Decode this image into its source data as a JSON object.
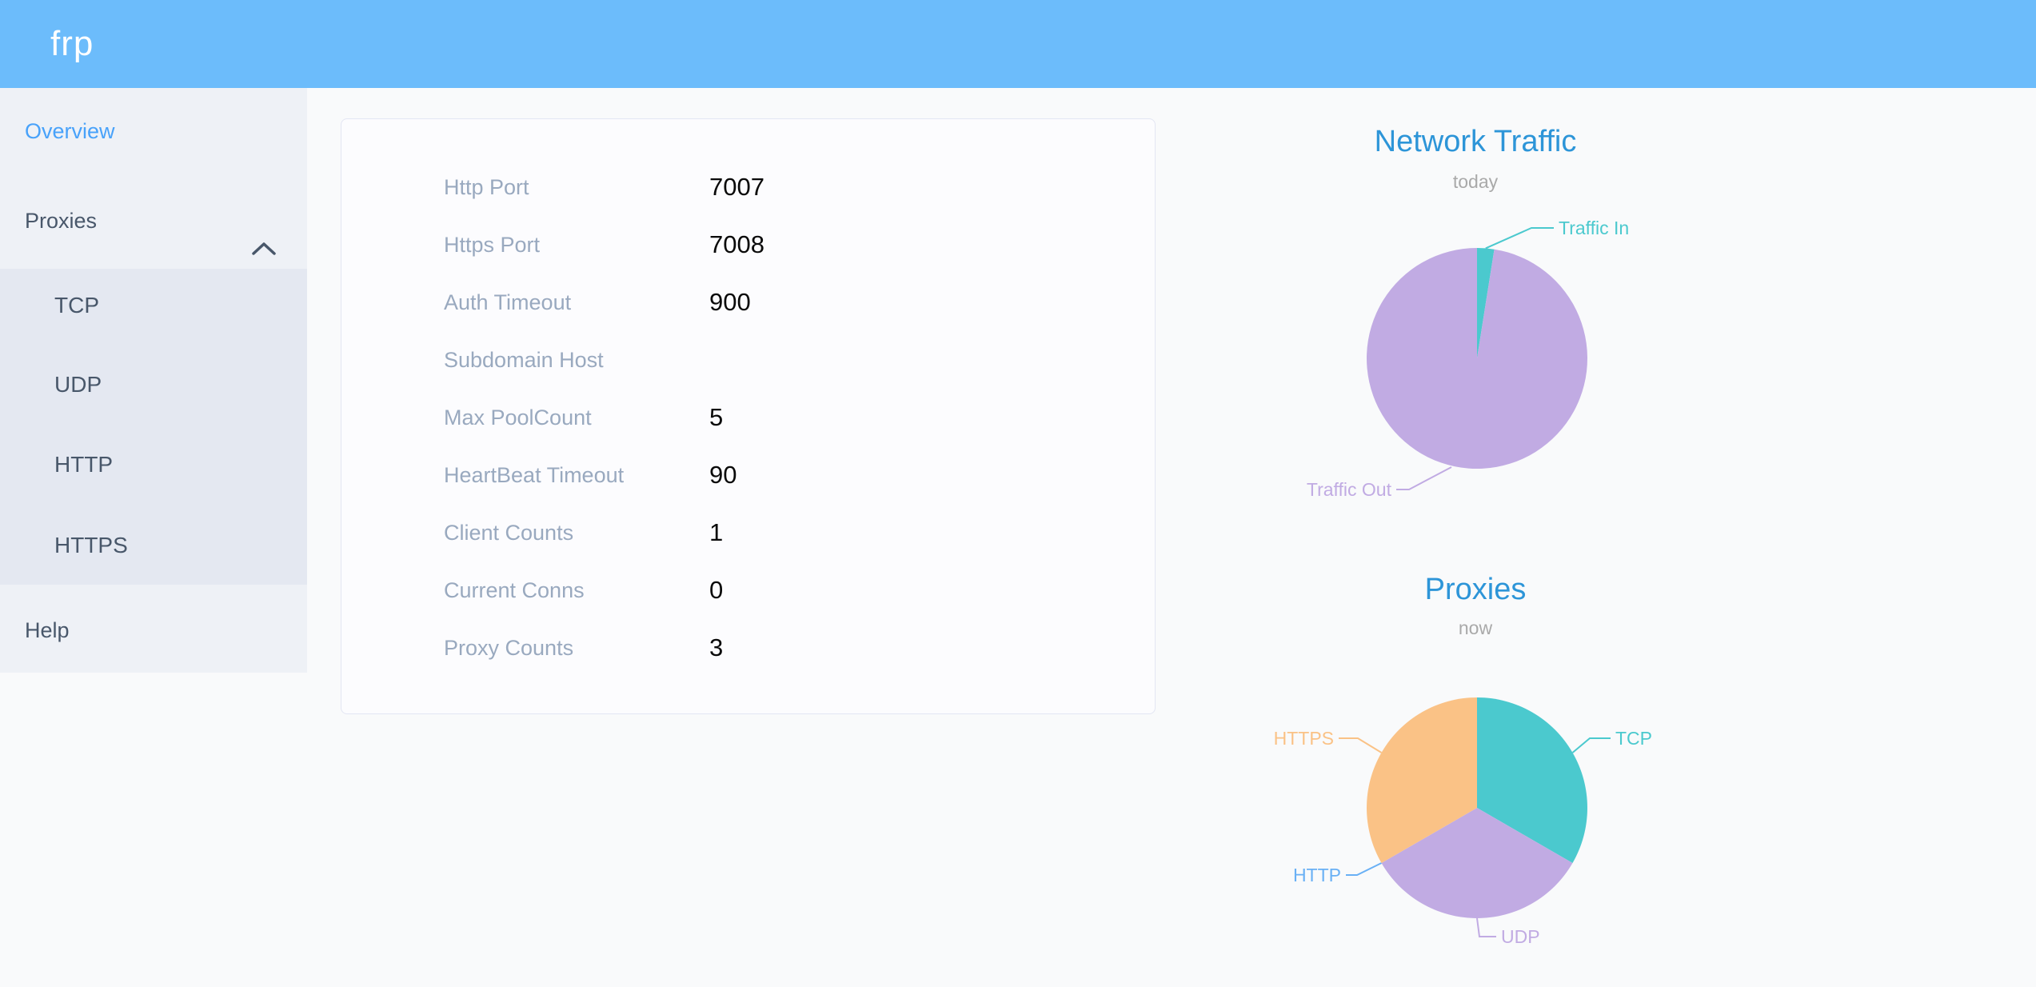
{
  "header": {
    "logo": "frp"
  },
  "sidebar": {
    "items": [
      {
        "id": "overview",
        "label": "Overview",
        "active": true
      },
      {
        "id": "proxies",
        "label": "Proxies",
        "expanded": true,
        "children": [
          {
            "id": "tcp",
            "label": "TCP"
          },
          {
            "id": "udp",
            "label": "UDP"
          },
          {
            "id": "http",
            "label": "HTTP"
          },
          {
            "id": "https",
            "label": "HTTPS"
          }
        ]
      },
      {
        "id": "help",
        "label": "Help"
      }
    ]
  },
  "overview_card": {
    "rows": [
      {
        "label": "Http Port",
        "value": "7007"
      },
      {
        "label": "Https Port",
        "value": "7008"
      },
      {
        "label": "Auth Timeout",
        "value": "900"
      },
      {
        "label": "Subdomain Host",
        "value": ""
      },
      {
        "label": "Max PoolCount",
        "value": "5"
      },
      {
        "label": "HeartBeat Timeout",
        "value": "90"
      },
      {
        "label": "Client Counts",
        "value": "1"
      },
      {
        "label": "Current Conns",
        "value": "0"
      },
      {
        "label": "Proxy Counts",
        "value": "3"
      }
    ]
  },
  "chart_data": [
    {
      "type": "pie",
      "title": "Network Traffic",
      "subtitle": "today",
      "labels": "outside",
      "legend_position": "none",
      "start_angle": "top",
      "direction": "clockwise",
      "values_unit": "percent_estimated",
      "series": [
        {
          "name": "Traffic In",
          "value": 2.5,
          "color": "#4BC9CE"
        },
        {
          "name": "Traffic Out",
          "value": 97.5,
          "color": "#C1ABE3"
        }
      ]
    },
    {
      "type": "pie",
      "title": "Proxies",
      "subtitle": "now",
      "labels": "outside",
      "legend_position": "none",
      "start_angle": "top",
      "direction": "clockwise",
      "values_unit": "proxy_count",
      "series": [
        {
          "name": "TCP",
          "value": 1,
          "color": "#4BC9CE"
        },
        {
          "name": "UDP",
          "value": 1,
          "color": "#C1ABE3"
        },
        {
          "name": "HTTP",
          "value": 0,
          "color": "#69B0F5"
        },
        {
          "name": "HTTPS",
          "value": 1,
          "color": "#FAC286"
        }
      ]
    }
  ],
  "colors": {
    "header_bg": "#6CBCFB",
    "sidebar_bg": "#EEF1F6",
    "submenu_bg": "#E4E8F1",
    "sidebar_text": "#48576A",
    "active_item": "#48A2FA",
    "page_bg": "#F9FAFB",
    "card_border": "#E3E6F3",
    "config_label": "#99A9BF",
    "config_value": "#0A0A0A",
    "chart_title": "#2D95D8",
    "chart_subtitle": "#A9A9A9",
    "teal": "#4BC9CE",
    "purple": "#C1ABE3",
    "orange": "#FAC286",
    "http_blue": "#69B0F5"
  }
}
